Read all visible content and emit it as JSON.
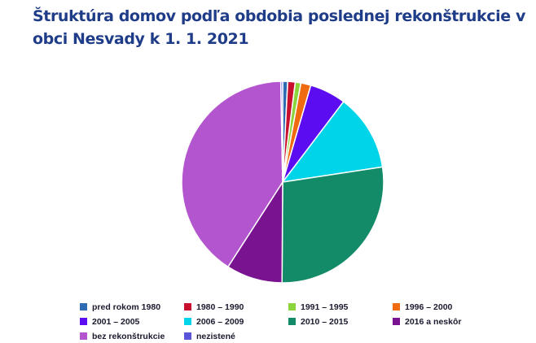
{
  "chart_data": {
    "type": "pie",
    "title": "Štruktúra domov podľa obdobia poslednej rekonštrukcie v obci Nesvady k 1. 1. 2021",
    "legend_position": "bottom",
    "slices": [
      {
        "label": "pred rokom 1980",
        "value": 0.8,
        "color": "#2e6bb3"
      },
      {
        "label": "1980 – 1990",
        "value": 1.2,
        "color": "#c8102e"
      },
      {
        "label": "1991 – 1995",
        "value": 0.9,
        "color": "#8cd43c"
      },
      {
        "label": "1996 – 2000",
        "value": 1.6,
        "color": "#f06a10"
      },
      {
        "label": "2001 – 2005",
        "value": 5.8,
        "color": "#5b0cf0"
      },
      {
        "label": "2006 – 2009",
        "value": 12.3,
        "color": "#00d4e8"
      },
      {
        "label": "2010 – 2015",
        "value": 27.5,
        "color": "#138a68"
      },
      {
        "label": "2016 a neskôr",
        "value": 9.0,
        "color": "#7a1390"
      },
      {
        "label": "bez rekonštrukcie",
        "value": 40.6,
        "color": "#b455d0"
      },
      {
        "label": "nezistené",
        "value": 0.3,
        "color": "#5a55d8"
      }
    ]
  }
}
